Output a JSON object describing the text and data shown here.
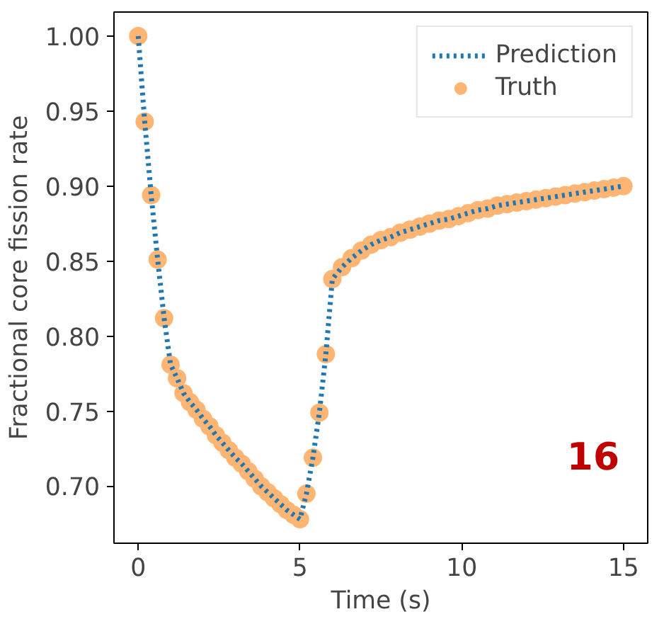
{
  "chart_data": {
    "type": "line",
    "xlabel": "Time (s)",
    "ylabel": "Fractional core fission rate",
    "xlim": [
      -0.75,
      15.75
    ],
    "ylim": [
      0.662,
      1.016
    ],
    "xticks": [
      0,
      5,
      10,
      15
    ],
    "yticks": [
      {
        "value": 0.7,
        "label": "0.70"
      },
      0.75,
      {
        "value": 0.8,
        "label": "0.80"
      },
      0.85,
      {
        "value": 0.9,
        "label": "0.90"
      },
      0.95,
      {
        "value": 1.0,
        "label": "1.00"
      }
    ],
    "grid": false,
    "legend": "top right",
    "annotations": [
      "16"
    ],
    "x": [
      0,
      0.2,
      0.4,
      0.6,
      0.8,
      1.0,
      1.2,
      1.4,
      1.6,
      1.8,
      2.0,
      2.2,
      2.4,
      2.6,
      2.8,
      3.0,
      3.2,
      3.4,
      3.6,
      3.8,
      4.0,
      4.2,
      4.4,
      4.6,
      4.8,
      5.0,
      5.2,
      5.4,
      5.6,
      5.8,
      6.0,
      6.3,
      6.6,
      6.9,
      7.2,
      7.5,
      7.8,
      8.1,
      8.4,
      8.7,
      9.0,
      9.3,
      9.6,
      9.9,
      10.2,
      10.5,
      10.8,
      11.1,
      11.4,
      11.7,
      12.0,
      12.3,
      12.6,
      12.9,
      13.2,
      13.5,
      13.8,
      14.1,
      14.4,
      14.7,
      15.0
    ],
    "series": [
      {
        "name": "Prediction",
        "type": "line",
        "color": "#1f77b4",
        "line_style": "dotted",
        "marker": "none",
        "values": [
          1.0,
          0.943,
          0.894,
          0.851,
          0.812,
          0.781,
          0.772,
          0.762,
          0.756,
          0.751,
          0.745,
          0.74,
          0.734,
          0.729,
          0.724,
          0.719,
          0.715,
          0.71,
          0.705,
          0.7,
          0.696,
          0.692,
          0.688,
          0.684,
          0.681,
          0.678,
          0.695,
          0.719,
          0.749,
          0.788,
          0.838,
          0.846,
          0.852,
          0.857,
          0.861,
          0.864,
          0.866,
          0.869,
          0.871,
          0.873,
          0.875,
          0.877,
          0.878,
          0.88,
          0.882,
          0.884,
          0.885,
          0.887,
          0.888,
          0.889,
          0.89,
          0.891,
          0.892,
          0.893,
          0.894,
          0.895,
          0.896,
          0.897,
          0.898,
          0.899,
          0.9
        ]
      },
      {
        "name": "Truth",
        "type": "scatter",
        "color": "#ffb574",
        "marker": "circle",
        "values": [
          1.0,
          0.943,
          0.894,
          0.851,
          0.812,
          0.781,
          0.772,
          0.762,
          0.756,
          0.751,
          0.745,
          0.74,
          0.734,
          0.729,
          0.724,
          0.719,
          0.715,
          0.71,
          0.705,
          0.7,
          0.696,
          0.692,
          0.688,
          0.684,
          0.681,
          0.678,
          0.695,
          0.719,
          0.749,
          0.788,
          0.838,
          0.846,
          0.852,
          0.857,
          0.861,
          0.864,
          0.866,
          0.869,
          0.871,
          0.873,
          0.875,
          0.877,
          0.878,
          0.88,
          0.882,
          0.884,
          0.885,
          0.887,
          0.888,
          0.889,
          0.89,
          0.891,
          0.892,
          0.893,
          0.894,
          0.895,
          0.896,
          0.897,
          0.898,
          0.899,
          0.9
        ]
      }
    ]
  }
}
